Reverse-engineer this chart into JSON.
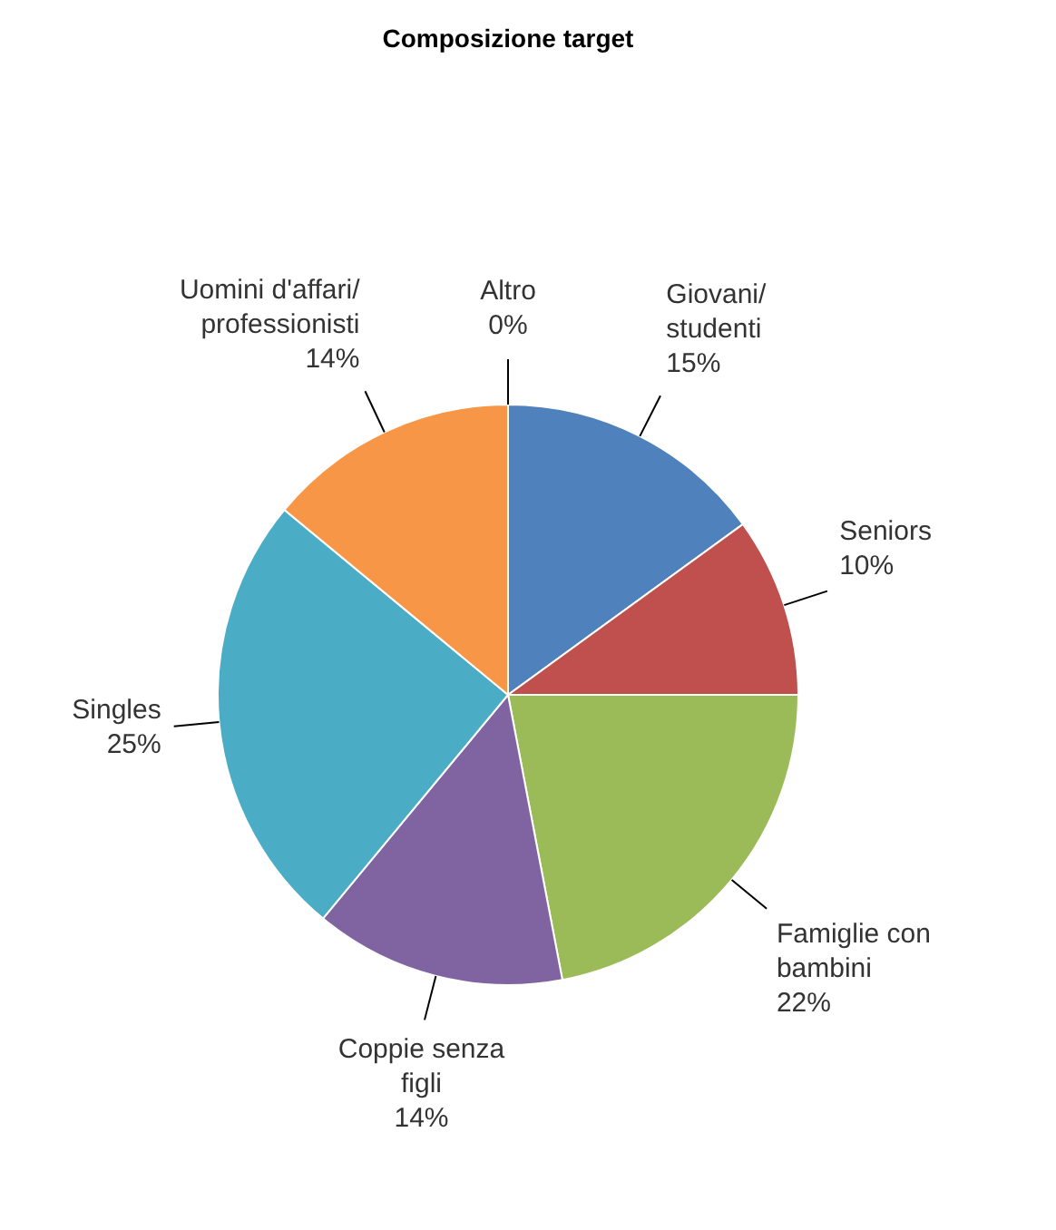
{
  "chart_data": {
    "type": "pie",
    "title": "Composizione target",
    "categories": [
      "Altro",
      "Giovani/ studenti",
      "Seniors",
      "Famiglie con bambini",
      "Coppie senza figli",
      "Singles",
      "Uomini d'affari/ professionisti"
    ],
    "values": [
      0,
      15,
      10,
      22,
      14,
      25,
      14
    ],
    "value_labels": [
      "0%",
      "15%",
      "10%",
      "22%",
      "14%",
      "25%",
      "14%"
    ],
    "colors": [
      "#2c4d75",
      "#4f81bd",
      "#c0504d",
      "#9bbb59",
      "#8064a2",
      "#4bacc6",
      "#f79646"
    ]
  }
}
